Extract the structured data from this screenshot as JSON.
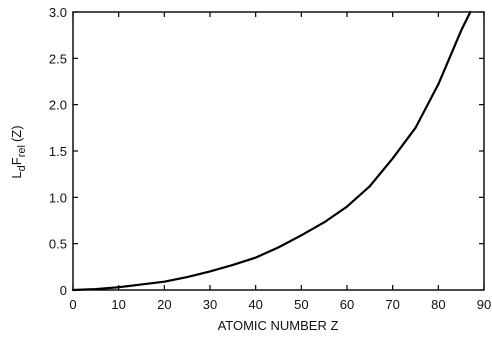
{
  "chart_data": {
    "type": "line",
    "xlabel": "ATOMIC NUMBER Z",
    "ylabel": {
      "base_L": "L",
      "sub_d": "d",
      "base_F": "F",
      "sub_rel": "rel",
      "suffix": "(Z)"
    },
    "xlim": [
      0,
      90
    ],
    "ylim": [
      0,
      3.0
    ],
    "xticks": [
      0,
      10,
      20,
      30,
      40,
      50,
      60,
      70,
      80,
      90
    ],
    "yticks": [
      0,
      0.5,
      1.0,
      1.5,
      2.0,
      2.5,
      3.0
    ],
    "xtick_labels": [
      "0",
      "10",
      "20",
      "30",
      "40",
      "50",
      "60",
      "70",
      "80",
      "90"
    ],
    "ytick_labels": [
      "0",
      "0.5",
      "1.0",
      "1.5",
      "2.0",
      "2.5",
      "3.0"
    ],
    "grid": false,
    "series": [
      {
        "color": "#000000",
        "x": [
          0,
          5,
          10,
          15,
          20,
          25,
          30,
          35,
          40,
          45,
          50,
          55,
          60,
          65,
          70,
          75,
          80,
          85,
          87
        ],
        "y": [
          0,
          0.01,
          0.03,
          0.06,
          0.09,
          0.14,
          0.2,
          0.27,
          0.35,
          0.46,
          0.59,
          0.73,
          0.9,
          1.12,
          1.42,
          1.75,
          2.22,
          2.8,
          3.0
        ]
      }
    ]
  }
}
